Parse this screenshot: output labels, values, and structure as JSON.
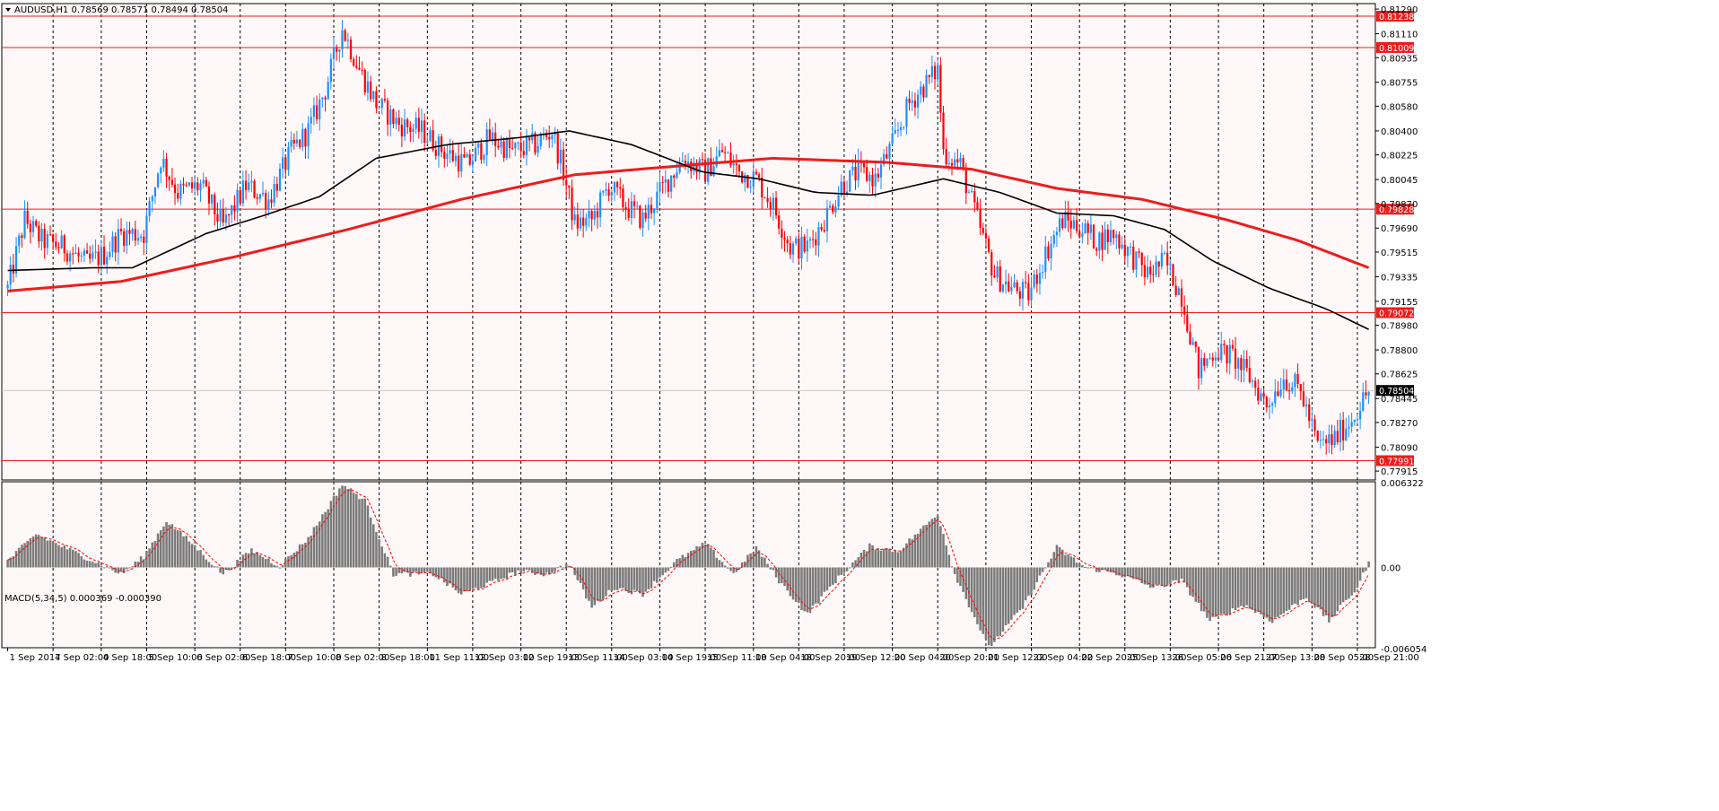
{
  "colors": {
    "background": "#fff8f8",
    "frame": "#000000",
    "grid": "#000000",
    "bull": "#1e90ff",
    "bear": "#ff0000",
    "ma_fast": "#000000",
    "ma_slow": "#ee1c1c",
    "hline": "#ee1c1c",
    "hist": "#7a7a7a",
    "signal": "#ff0000",
    "price_box": "#000000"
  },
  "header": {
    "symbol_text": "AUDUSD,H1  0.78569 0.78571 0.78494 0.78504"
  },
  "macd_header": {
    "text": "MACD(5,34,5) 0.000369 -0.000390"
  },
  "chart_data": [
    {
      "type": "candlestick",
      "symbol": "AUDUSD",
      "timeframe": "H1",
      "ohlc_last": {
        "open": 0.78569,
        "high": 0.78571,
        "low": 0.78494,
        "close": 0.78504
      },
      "current_price": "0.78504",
      "ylim": [
        0.7785,
        0.8133
      ],
      "y_tick_labels": [
        "0.81290",
        "0.81110",
        "0.80935",
        "0.80755",
        "0.80580",
        "0.80400",
        "0.80225",
        "0.80045",
        "0.79870",
        "0.79690",
        "0.79515",
        "0.79335",
        "0.79155",
        "0.78980",
        "0.78800",
        "0.78625",
        "0.78445",
        "0.78270",
        "0.78090",
        "0.77915"
      ],
      "horizontal_lines": [
        {
          "label": "0.81238",
          "price": 0.81238
        },
        {
          "label": "0.81009",
          "price": 0.81009
        },
        {
          "label": "0.79828",
          "price": 0.79828
        },
        {
          "label": "0.79072",
          "price": 0.79072
        },
        {
          "label": "0.77991",
          "price": 0.77991
        }
      ],
      "x_tick_labels": [
        "1 Sep 2017",
        "4 Sep 02:00",
        "4 Sep 18:00",
        "5 Sep 10:00",
        "6 Sep 02:00",
        "6 Sep 18:00",
        "7 Sep 10:00",
        "8 Sep 02:00",
        "8 Sep 18:00",
        "11 Sep 11:00",
        "12 Sep 03:00",
        "12 Sep 19:00",
        "13 Sep 11:00",
        "14 Sep 03:00",
        "14 Sep 19:00",
        "15 Sep 11:00",
        "18 Sep 04:00",
        "18 Sep 20:00",
        "19 Sep 12:00",
        "20 Sep 04:00",
        "20 Sep 20:00",
        "21 Sep 12:00",
        "22 Sep 04:00",
        "22 Sep 20:00",
        "25 Sep 13:00",
        "26 Sep 05:00",
        "26 Sep 21:00",
        "27 Sep 13:00",
        "28 Sep 05:00",
        "28 Sep 21:00"
      ],
      "price_path": [
        {
          "bar": 0,
          "price": 0.7925
        },
        {
          "bar": 6,
          "price": 0.7975
        },
        {
          "bar": 12,
          "price": 0.796
        },
        {
          "bar": 20,
          "price": 0.7955
        },
        {
          "bar": 28,
          "price": 0.7943
        },
        {
          "bar": 34,
          "price": 0.795
        },
        {
          "bar": 40,
          "price": 0.7965
        },
        {
          "bar": 48,
          "price": 0.7965
        },
        {
          "bar": 54,
          "price": 0.802
        },
        {
          "bar": 60,
          "price": 0.7995
        },
        {
          "bar": 68,
          "price": 0.8
        },
        {
          "bar": 76,
          "price": 0.797
        },
        {
          "bar": 84,
          "price": 0.8
        },
        {
          "bar": 92,
          "price": 0.799
        },
        {
          "bar": 100,
          "price": 0.8025
        },
        {
          "bar": 106,
          "price": 0.804
        },
        {
          "bar": 112,
          "price": 0.807
        },
        {
          "bar": 118,
          "price": 0.8115
        },
        {
          "bar": 124,
          "price": 0.8085
        },
        {
          "bar": 130,
          "price": 0.806
        },
        {
          "bar": 138,
          "price": 0.8045
        },
        {
          "bar": 146,
          "price": 0.804
        },
        {
          "bar": 154,
          "price": 0.8025
        },
        {
          "bar": 162,
          "price": 0.8015
        },
        {
          "bar": 170,
          "price": 0.8035
        },
        {
          "bar": 178,
          "price": 0.8025
        },
        {
          "bar": 186,
          "price": 0.803
        },
        {
          "bar": 192,
          "price": 0.804
        },
        {
          "bar": 196,
          "price": 0.801
        },
        {
          "bar": 200,
          "price": 0.7972
        },
        {
          "bar": 206,
          "price": 0.7975
        },
        {
          "bar": 212,
          "price": 0.8
        },
        {
          "bar": 218,
          "price": 0.7985
        },
        {
          "bar": 224,
          "price": 0.7975
        },
        {
          "bar": 230,
          "price": 0.7995
        },
        {
          "bar": 238,
          "price": 0.802
        },
        {
          "bar": 246,
          "price": 0.801
        },
        {
          "bar": 252,
          "price": 0.8025
        },
        {
          "bar": 258,
          "price": 0.801
        },
        {
          "bar": 264,
          "price": 0.8005
        },
        {
          "bar": 270,
          "price": 0.7985
        },
        {
          "bar": 276,
          "price": 0.7955
        },
        {
          "bar": 282,
          "price": 0.7955
        },
        {
          "bar": 288,
          "price": 0.7975
        },
        {
          "bar": 294,
          "price": 0.8
        },
        {
          "bar": 300,
          "price": 0.801
        },
        {
          "bar": 306,
          "price": 0.8005
        },
        {
          "bar": 312,
          "price": 0.803
        },
        {
          "bar": 318,
          "price": 0.806
        },
        {
          "bar": 324,
          "price": 0.8075
        },
        {
          "bar": 328,
          "price": 0.8085
        },
        {
          "bar": 330,
          "price": 0.8025
        },
        {
          "bar": 336,
          "price": 0.8015
        },
        {
          "bar": 342,
          "price": 0.7975
        },
        {
          "bar": 348,
          "price": 0.7935
        },
        {
          "bar": 354,
          "price": 0.7925
        },
        {
          "bar": 360,
          "price": 0.792
        },
        {
          "bar": 366,
          "price": 0.795
        },
        {
          "bar": 372,
          "price": 0.7975
        },
        {
          "bar": 378,
          "price": 0.797
        },
        {
          "bar": 384,
          "price": 0.796
        },
        {
          "bar": 390,
          "price": 0.7965
        },
        {
          "bar": 396,
          "price": 0.795
        },
        {
          "bar": 402,
          "price": 0.7935
        },
        {
          "bar": 408,
          "price": 0.7945
        },
        {
          "bar": 414,
          "price": 0.792
        },
        {
          "bar": 420,
          "price": 0.7865
        },
        {
          "bar": 426,
          "price": 0.788
        },
        {
          "bar": 432,
          "price": 0.7875
        },
        {
          "bar": 438,
          "price": 0.786
        },
        {
          "bar": 444,
          "price": 0.784
        },
        {
          "bar": 450,
          "price": 0.786
        },
        {
          "bar": 456,
          "price": 0.785
        },
        {
          "bar": 462,
          "price": 0.781
        },
        {
          "bar": 468,
          "price": 0.7815
        },
        {
          "bar": 474,
          "price": 0.783
        },
        {
          "bar": 480,
          "price": 0.785
        }
      ],
      "ma_fast_path": [
        {
          "bar": 0,
          "price": 0.7938
        },
        {
          "bar": 30,
          "price": 0.794
        },
        {
          "bar": 44,
          "price": 0.794
        },
        {
          "bar": 70,
          "price": 0.7965
        },
        {
          "bar": 90,
          "price": 0.7978
        },
        {
          "bar": 110,
          "price": 0.7992
        },
        {
          "bar": 130,
          "price": 0.802
        },
        {
          "bar": 155,
          "price": 0.803
        },
        {
          "bar": 180,
          "price": 0.8035
        },
        {
          "bar": 198,
          "price": 0.804
        },
        {
          "bar": 220,
          "price": 0.803
        },
        {
          "bar": 245,
          "price": 0.801
        },
        {
          "bar": 265,
          "price": 0.8005
        },
        {
          "bar": 285,
          "price": 0.7995
        },
        {
          "bar": 305,
          "price": 0.7993
        },
        {
          "bar": 330,
          "price": 0.8005
        },
        {
          "bar": 350,
          "price": 0.7995
        },
        {
          "bar": 370,
          "price": 0.798
        },
        {
          "bar": 390,
          "price": 0.7978
        },
        {
          "bar": 408,
          "price": 0.7968
        },
        {
          "bar": 425,
          "price": 0.7945
        },
        {
          "bar": 445,
          "price": 0.7925
        },
        {
          "bar": 465,
          "price": 0.791
        },
        {
          "bar": 480,
          "price": 0.7895
        }
      ],
      "ma_slow_path": [
        {
          "bar": 0,
          "price": 0.7923
        },
        {
          "bar": 40,
          "price": 0.793
        },
        {
          "bar": 80,
          "price": 0.7948
        },
        {
          "bar": 120,
          "price": 0.7968
        },
        {
          "bar": 160,
          "price": 0.799
        },
        {
          "bar": 200,
          "price": 0.8008
        },
        {
          "bar": 240,
          "price": 0.8015
        },
        {
          "bar": 270,
          "price": 0.802
        },
        {
          "bar": 310,
          "price": 0.8017
        },
        {
          "bar": 340,
          "price": 0.8012
        },
        {
          "bar": 370,
          "price": 0.7998
        },
        {
          "bar": 400,
          "price": 0.799
        },
        {
          "bar": 430,
          "price": 0.7975
        },
        {
          "bar": 455,
          "price": 0.796
        },
        {
          "bar": 480,
          "price": 0.794
        }
      ],
      "bar_count": 480
    },
    {
      "type": "histogram",
      "name": "MACD(5,34,5)",
      "values_header": [
        "0.000369",
        "-0.000390"
      ],
      "ylim": [
        -0.006,
        0.0064
      ],
      "y_tick_labels": [
        "0.006322",
        "0.00",
        "-0.006054"
      ],
      "hist_path": [
        {
          "bar": 0,
          "v": 0.0005
        },
        {
          "bar": 10,
          "v": 0.0025
        },
        {
          "bar": 20,
          "v": 0.0015
        },
        {
          "bar": 30,
          "v": 0.0005
        },
        {
          "bar": 40,
          "v": -0.0005
        },
        {
          "bar": 48,
          "v": 0.0008
        },
        {
          "bar": 56,
          "v": 0.0035
        },
        {
          "bar": 64,
          "v": 0.002
        },
        {
          "bar": 76,
          "v": -0.0005
        },
        {
          "bar": 86,
          "v": 0.0013
        },
        {
          "bar": 96,
          "v": 0.0001
        },
        {
          "bar": 106,
          "v": 0.0022
        },
        {
          "bar": 118,
          "v": 0.0062
        },
        {
          "bar": 126,
          "v": 0.005
        },
        {
          "bar": 136,
          "v": -0.0005
        },
        {
          "bar": 150,
          "v": -0.0005
        },
        {
          "bar": 160,
          "v": -0.002
        },
        {
          "bar": 170,
          "v": -0.0012
        },
        {
          "bar": 180,
          "v": -0.0003
        },
        {
          "bar": 190,
          "v": -0.0005
        },
        {
          "bar": 198,
          "v": 0.0003
        },
        {
          "bar": 206,
          "v": -0.003
        },
        {
          "bar": 214,
          "v": -0.0015
        },
        {
          "bar": 224,
          "v": -0.002
        },
        {
          "bar": 236,
          "v": 0.0005
        },
        {
          "bar": 246,
          "v": 0.0018
        },
        {
          "bar": 256,
          "v": -0.0005
        },
        {
          "bar": 264,
          "v": 0.0015
        },
        {
          "bar": 272,
          "v": -0.001
        },
        {
          "bar": 282,
          "v": -0.0035
        },
        {
          "bar": 292,
          "v": -0.001
        },
        {
          "bar": 304,
          "v": 0.0016
        },
        {
          "bar": 314,
          "v": 0.0012
        },
        {
          "bar": 328,
          "v": 0.004
        },
        {
          "bar": 334,
          "v": -0.0005
        },
        {
          "bar": 346,
          "v": -0.006
        },
        {
          "bar": 358,
          "v": -0.003
        },
        {
          "bar": 370,
          "v": 0.0015
        },
        {
          "bar": 380,
          "v": 0.0
        },
        {
          "bar": 392,
          "v": -0.0005
        },
        {
          "bar": 404,
          "v": -0.0015
        },
        {
          "bar": 414,
          "v": -0.001
        },
        {
          "bar": 424,
          "v": -0.004
        },
        {
          "bar": 436,
          "v": -0.0028
        },
        {
          "bar": 446,
          "v": -0.004
        },
        {
          "bar": 458,
          "v": -0.0022
        },
        {
          "bar": 466,
          "v": -0.004
        },
        {
          "bar": 476,
          "v": -0.0015
        },
        {
          "bar": 480,
          "v": 0.0004
        }
      ]
    }
  ]
}
